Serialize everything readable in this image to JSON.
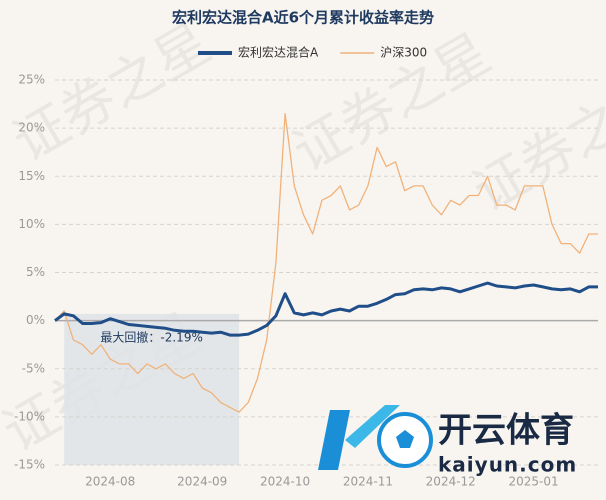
{
  "chart_data": {
    "type": "line",
    "title": "宏利宏达混合A近6个月累计收益率走势",
    "categories": [
      null,
      null,
      null,
      null,
      null,
      null,
      "2024-08",
      null,
      null,
      null,
      null,
      null,
      null,
      null,
      null,
      null,
      "2024-09",
      null,
      null,
      null,
      null,
      null,
      null,
      null,
      null,
      "2024-10",
      null,
      null,
      null,
      null,
      null,
      null,
      null,
      null,
      "2024-11",
      null,
      null,
      null,
      null,
      null,
      null,
      null,
      null,
      "2024-12",
      null,
      null,
      null,
      null,
      null,
      null,
      null,
      null,
      "2025-01",
      null,
      null,
      null,
      null,
      null,
      null,
      null
    ],
    "series": [
      {
        "name": "宏利宏达混合A",
        "color": "#1f4e89",
        "values": [
          0,
          0.7,
          0.5,
          -0.3,
          -0.3,
          -0.2,
          0.2,
          -0.1,
          -0.4,
          -0.5,
          -0.6,
          -0.7,
          -0.8,
          -1.0,
          -1.1,
          -1.1,
          -1.2,
          -1.3,
          -1.2,
          -1.5,
          -1.5,
          -1.4,
          -1.0,
          -0.5,
          0.5,
          2.8,
          0.8,
          0.6,
          0.8,
          0.6,
          1.0,
          1.2,
          1.0,
          1.5,
          1.5,
          1.8,
          2.2,
          2.7,
          2.8,
          3.2,
          3.3,
          3.2,
          3.4,
          3.3,
          3.0,
          3.3,
          3.6,
          3.9,
          3.6,
          3.5,
          3.4,
          3.6,
          3.7,
          3.5,
          3.3,
          3.2,
          3.3,
          3.0,
          3.5,
          3.5
        ]
      },
      {
        "name": "沪深300",
        "color": "#f0b27a",
        "values": [
          0,
          1.0,
          -2,
          -2.5,
          -3.5,
          -2.5,
          -4,
          -4.5,
          -4.5,
          -5.5,
          -4.5,
          -5,
          -4.5,
          -5.5,
          -6,
          -5.5,
          -7,
          -7.5,
          -8.5,
          -9,
          -9.5,
          -8.5,
          -6,
          -2,
          6,
          21.5,
          14,
          11,
          9,
          12.5,
          13,
          14,
          11.5,
          12,
          14,
          18,
          16,
          16.5,
          13.5,
          14,
          14,
          12,
          11,
          12.5,
          12,
          13,
          13,
          15,
          12,
          12,
          11.5,
          14,
          14,
          14,
          10,
          8,
          8,
          7,
          9,
          9
        ]
      }
    ],
    "ylim": [
      -15,
      25
    ],
    "yticks": [
      {
        "value": -15,
        "label": "-15%"
      },
      {
        "value": -10,
        "label": "-10%"
      },
      {
        "value": -5,
        "label": "-5%"
      },
      {
        "value": 0,
        "label": "0%"
      },
      {
        "value": 5,
        "label": "5%"
      },
      {
        "value": 10,
        "label": "10%"
      },
      {
        "value": 15,
        "label": "15%"
      },
      {
        "value": 20,
        "label": "20%"
      },
      {
        "value": 25,
        "label": "25%"
      }
    ],
    "grid": true,
    "annotation": "最大回撤：-2.19%",
    "watermark": "证券之星",
    "logo_text": "开云体育",
    "logo_url": "kaiyun.com"
  }
}
